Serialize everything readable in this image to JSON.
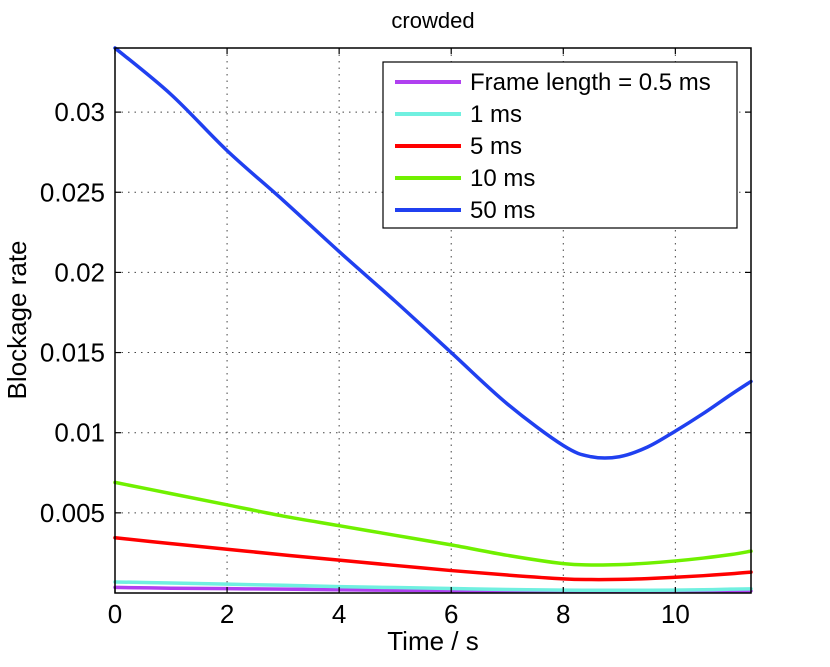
{
  "chart_data": {
    "type": "line",
    "title": "crowded",
    "xlabel": "Time / s",
    "ylabel": "Blockage rate",
    "xlim": [
      0,
      11.35
    ],
    "ylim": [
      0,
      0.034
    ],
    "xticks": [
      0,
      2,
      4,
      6,
      8,
      10
    ],
    "xtick_labels": [
      "0",
      "2",
      "4",
      "6",
      "8",
      "10"
    ],
    "yticks": [
      0.005,
      0.01,
      0.015,
      0.02,
      0.025,
      0.03
    ],
    "ytick_labels": [
      "0.005",
      "0.01",
      "0.015",
      "0.02",
      "0.025",
      "0.03"
    ],
    "grid": true,
    "legend_position": "top-right",
    "x": [
      0,
      1,
      2,
      3,
      4,
      5,
      6,
      7,
      8,
      8.5,
      9,
      9.5,
      10,
      10.5,
      11,
      11.35
    ],
    "series": [
      {
        "name": "Frame length = 0.5 ms",
        "color": "#b040f0",
        "values": [
          0.00035,
          0.0003,
          0.00027,
          0.00024,
          0.0002,
          0.00017,
          0.00014,
          0.00011,
          9e-05,
          8e-05,
          8e-05,
          8e-05,
          9e-05,
          0.0001,
          0.00012,
          0.00013
        ]
      },
      {
        "name": "1 ms",
        "color": "#70f0e0",
        "values": [
          0.00069,
          0.00062,
          0.00055,
          0.00048,
          0.0004,
          0.00034,
          0.00028,
          0.00022,
          0.00018,
          0.00017,
          0.00017,
          0.00017,
          0.00018,
          0.0002,
          0.00024,
          0.00026
        ]
      },
      {
        "name": "5 ms",
        "color": "#ff0000",
        "values": [
          0.00345,
          0.00308,
          0.00273,
          0.00238,
          0.00205,
          0.00172,
          0.0014,
          0.00112,
          0.00088,
          0.00084,
          0.00085,
          0.0009,
          0.00098,
          0.00108,
          0.0012,
          0.0013
        ]
      },
      {
        "name": "10 ms",
        "color": "#70f000",
        "values": [
          0.0069,
          0.0062,
          0.0055,
          0.0048,
          0.0042,
          0.0036,
          0.003,
          0.00235,
          0.00183,
          0.00175,
          0.00177,
          0.00186,
          0.002,
          0.00218,
          0.0024,
          0.00261
        ]
      },
      {
        "name": "50 ms",
        "color": "#2040f0",
        "values": [
          0.034,
          0.0311,
          0.0276,
          0.0245,
          0.0213,
          0.0182,
          0.015,
          0.0118,
          0.0092,
          0.0085,
          0.0085,
          0.0091,
          0.0101,
          0.0112,
          0.0124,
          0.0132
        ]
      }
    ]
  }
}
